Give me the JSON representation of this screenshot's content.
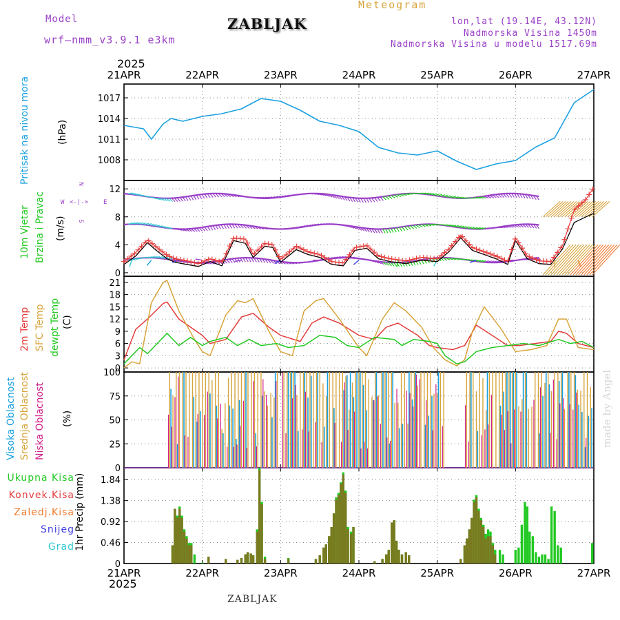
{
  "header": {
    "model_label": "Model",
    "model_name": "wrf–nmm_v3.9.1  e3km",
    "station": "ZABLJAK",
    "title": "Meteogram",
    "coords": "lon,lat (19.14E, 43.12N)",
    "elevation": "Nadmorska Visina 1450m",
    "model_elevation": "Nadmorska Visina u modelu 1517.69m",
    "year_top": "2025",
    "year_bottom": "2025"
  },
  "footer_station": "ZABLJAK",
  "watermark": "made by Angel",
  "colors": {
    "pressure": "#1aa0e0",
    "wind_green": "#22c922",
    "temp2m": "#e43b3b",
    "sfc_temp": "#d8a43a",
    "dewpoint": "#22c922",
    "high_cloud": "#1aa0e0",
    "mid_cloud": "#d8a43a",
    "low_cloud": "#d0208a",
    "purple": "#9a40c8",
    "total_precip": "#22c922",
    "conv_precip": "#e43b3b",
    "frozen_precip": "#f07b30",
    "snow": "#4040e0",
    "hail": "#30c8d0",
    "olive": "#7a7a20"
  },
  "panel_labels": {
    "pressure": "Pritisak na nivou mora",
    "pressure_unit": "(hPa)",
    "wind_a": "10m Vjetar",
    "wind_b": "Brzina i Pravac",
    "wind_unit": "(m/s)",
    "wind_dir_n": "N",
    "wind_dir_e": "E",
    "wind_dir_w": "W",
    "wind_dir_s": "S",
    "temp_a": "2m Temp",
    "temp_b": "SFC Temp",
    "temp_c": "dewpt Temp",
    "temp_unit": "(C)",
    "cloud_high": "Visoka Oblacnost",
    "cloud_mid": "Srednja Oblacnost",
    "cloud_low": "Niska Oblacnost",
    "cloud_unit": "(%)",
    "precip_unit": "1hr Precip (mm)",
    "precip_total": "Ukupna Kisa",
    "precip_conv": "Konvek.Kisa",
    "precip_frozen": "Zaledj.Kisa",
    "precip_snow": "Snijeg",
    "precip_hail": "Grad"
  },
  "chart_data": [
    {
      "id": "pressure",
      "type": "line",
      "x_ticks": [
        "21APR",
        "22APR",
        "23APR",
        "24APR",
        "25APR",
        "26APR",
        "27APR"
      ],
      "ylabel": "Pritisak na nivou mora (hPa)",
      "ylim": [
        1005,
        1019
      ],
      "yticks": [
        "1008",
        "1011",
        "1014",
        "1017"
      ],
      "grid": true,
      "days": [
        0,
        0.25,
        0.35,
        0.5,
        0.6,
        0.75,
        1.0,
        1.25,
        1.5,
        1.75,
        2.0,
        2.25,
        2.5,
        2.75,
        3.0,
        3.25,
        3.5,
        3.75,
        4.0,
        4.25,
        4.5,
        4.75,
        5.0,
        5.25,
        5.5,
        5.75,
        6.0
      ],
      "values": [
        1013,
        1012.5,
        1011,
        1013.2,
        1014,
        1013.6,
        1014.3,
        1014.7,
        1015.4,
        1016.9,
        1016.5,
        1015.2,
        1013.6,
        1013.0,
        1012.1,
        1009.8,
        1009.0,
        1008.7,
        1009.3,
        1007.8,
        1006.6,
        1007.4,
        1007.9,
        1009.8,
        1011.2,
        1016.3,
        1018.2
      ]
    },
    {
      "id": "wind",
      "type": "line",
      "x_ticks": [
        "21APR",
        "22APR",
        "23APR",
        "24APR",
        "25APR",
        "26APR",
        "27APR"
      ],
      "ylabel": "10m Vjetar Brzina i Pravac (m/s)",
      "ylim": [
        -0.5,
        13.2
      ],
      "yticks": [
        "0",
        "4",
        "8",
        "12"
      ],
      "grid": true,
      "days": [
        0,
        0.15,
        0.3,
        0.4,
        0.55,
        0.65,
        0.8,
        0.95,
        1.1,
        1.25,
        1.4,
        1.55,
        1.65,
        1.8,
        1.9,
        2.0,
        2.2,
        2.35,
        2.5,
        2.65,
        2.8,
        2.95,
        3.1,
        3.25,
        3.4,
        3.6,
        3.8,
        4.0,
        4.15,
        4.3,
        4.45,
        4.6,
        4.75,
        4.9,
        5.0,
        5.15,
        5.3,
        5.45,
        5.6,
        5.75,
        5.9,
        6.0
      ],
      "speed": [
        1.2,
        2.4,
        4.3,
        3.3,
        2.0,
        1.5,
        1.2,
        0.9,
        1.6,
        1.0,
        4.6,
        4.2,
        2.2,
        3.8,
        3.6,
        1.5,
        3.3,
        2.6,
        2.2,
        1.2,
        1.0,
        3.2,
        3.5,
        2.0,
        1.6,
        1.3,
        1.8,
        1.6,
        3.0,
        5.0,
        3.2,
        2.6,
        2.0,
        1.2,
        4.6,
        2.0,
        1.3,
        1.2,
        3.4,
        7.2,
        8.0,
        8.5
      ],
      "gust": [
        1.6,
        2.9,
        4.7,
        3.8,
        2.5,
        2.0,
        1.7,
        1.3,
        2.0,
        1.5,
        5.0,
        4.8,
        2.6,
        4.2,
        4.0,
        1.9,
        3.8,
        3.0,
        2.6,
        1.6,
        1.4,
        3.6,
        3.9,
        2.4,
        2.0,
        1.7,
        2.2,
        2.0,
        3.4,
        5.4,
        3.6,
        3.0,
        2.4,
        1.6,
        5.0,
        2.4,
        1.7,
        1.6,
        3.9,
        9.0,
        10.5,
        12.2
      ],
      "direction_lanes": [
        1.8,
        6.6,
        11.0
      ],
      "barbs": [
        {
          "day": 0.1,
          "lane": 1.8,
          "angle": 200,
          "c": "#30c8d0"
        },
        {
          "day": 0.35,
          "lane": 1.8,
          "angle": 220,
          "c": "#1aa0e0"
        },
        {
          "day": 0.7,
          "lane": 1.8,
          "angle": 250,
          "c": "#4040e0"
        },
        {
          "day": 1.0,
          "lane": 1.8,
          "angle": 280,
          "c": "#9a40c8"
        },
        {
          "day": 1.5,
          "lane": 1.8,
          "angle": 260,
          "c": "#9a40c8"
        },
        {
          "day": 2.0,
          "lane": 1.8,
          "angle": 240,
          "c": "#4040e0"
        },
        {
          "day": 2.5,
          "lane": 1.8,
          "angle": 270,
          "c": "#9a40c8"
        },
        {
          "day": 3.0,
          "lane": 1.8,
          "angle": 230,
          "c": "#4040e0"
        },
        {
          "day": 3.5,
          "lane": 1.8,
          "angle": 190,
          "c": "#22c922"
        },
        {
          "day": 4.0,
          "lane": 1.8,
          "angle": 210,
          "c": "#30c8d0"
        },
        {
          "day": 4.5,
          "lane": 1.8,
          "angle": 250,
          "c": "#4040e0"
        },
        {
          "day": 5.0,
          "lane": 1.8,
          "angle": 270,
          "c": "#9a40c8"
        },
        {
          "day": 5.5,
          "lane": 1.8,
          "angle": 180,
          "c": "#d8a43a"
        },
        {
          "day": 5.8,
          "lane": 1.8,
          "angle": 160,
          "c": "#f07b30"
        }
      ]
    },
    {
      "id": "temperature",
      "type": "line",
      "x_ticks": [
        "21APR",
        "22APR",
        "23APR",
        "24APR",
        "25APR",
        "26APR",
        "27APR"
      ],
      "ylabel": "Temp (C)",
      "ylim": [
        -1,
        22.5
      ],
      "yticks": [
        "0",
        "3",
        "6",
        "9",
        "12",
        "15",
        "18",
        "21"
      ],
      "grid": true,
      "series": [
        {
          "name": "2m Temp",
          "days": [
            0,
            0.15,
            0.3,
            0.5,
            0.55,
            0.7,
            1.0,
            1.1,
            1.3,
            1.5,
            1.65,
            1.85,
            2.0,
            2.25,
            2.4,
            2.55,
            2.75,
            3.0,
            3.2,
            3.35,
            3.5,
            3.75,
            3.9,
            4.0,
            4.2,
            4.35,
            4.5,
            4.7,
            4.9,
            5.05,
            5.25,
            5.45,
            5.55,
            5.65,
            5.8,
            6.0
          ],
          "values": [
            2,
            9.5,
            12,
            15.8,
            16.2,
            12,
            8,
            6,
            7,
            12.5,
            13.4,
            10,
            8,
            6.5,
            11,
            12.5,
            11,
            8,
            7,
            10,
            11,
            8,
            5.5,
            5,
            4.5,
            5.5,
            10.5,
            8,
            5.5,
            5.5,
            6,
            6.5,
            9,
            8.5,
            6,
            5
          ]
        },
        {
          "name": "SFC Temp",
          "days": [
            0,
            0.1,
            0.2,
            0.35,
            0.5,
            0.55,
            0.7,
            0.9,
            1.0,
            1.1,
            1.3,
            1.45,
            1.55,
            1.65,
            1.85,
            2.0,
            2.15,
            2.3,
            2.45,
            2.55,
            2.75,
            3.0,
            3.1,
            3.3,
            3.45,
            3.6,
            3.8,
            3.95,
            4.1,
            4.25,
            4.35,
            4.45,
            4.6,
            4.8,
            5.0,
            5.2,
            5.4,
            5.55,
            5.65,
            5.8,
            6.0
          ],
          "values": [
            0,
            1.5,
            1,
            16,
            21,
            21.5,
            14,
            7,
            4,
            3,
            13,
            16.5,
            16,
            17,
            9,
            4,
            3,
            14,
            16.5,
            17,
            12,
            5,
            3,
            12,
            16,
            14,
            10,
            5,
            2,
            0.5,
            2,
            9,
            15,
            10,
            4,
            4.5,
            5.5,
            12,
            12,
            5,
            4.5
          ]
        },
        {
          "name": "dewpt Temp",
          "days": [
            0,
            0.2,
            0.3,
            0.45,
            0.55,
            0.7,
            0.85,
            1.0,
            1.1,
            1.3,
            1.45,
            1.6,
            1.75,
            1.95,
            2.1,
            2.3,
            2.5,
            2.7,
            2.85,
            3.0,
            3.2,
            3.45,
            3.55,
            3.7,
            3.9,
            4.0,
            4.1,
            4.25,
            4.35,
            4.5,
            4.7,
            4.9,
            5.1,
            5.3,
            5.55,
            5.7,
            5.85,
            6.0
          ],
          "values": [
            1,
            5,
            3.5,
            6.5,
            8.5,
            5.5,
            7.5,
            5.5,
            6.5,
            7.5,
            5.5,
            7,
            5.5,
            6,
            5,
            5.5,
            8,
            7.5,
            5.5,
            5,
            7.5,
            7,
            5.5,
            7,
            6.5,
            6,
            3,
            1,
            1.5,
            4,
            5,
            5.5,
            6,
            5.5,
            7,
            6,
            6.5,
            5
          ]
        }
      ]
    },
    {
      "id": "clouds",
      "type": "bar",
      "x_ticks": [
        "21APR",
        "22APR",
        "23APR",
        "24APR",
        "25APR",
        "26APR",
        "27APR"
      ],
      "ylabel": "Oblacnost (%)",
      "ylim": [
        0,
        100
      ],
      "yticks": [
        "0",
        "25",
        "50",
        "75",
        "100"
      ],
      "grid": true,
      "note": "hourly high/mid/low cloud fraction, approximated"
    },
    {
      "id": "precip",
      "type": "bar",
      "x_ticks": [
        "21APR",
        "22APR",
        "23APR",
        "24APR",
        "25APR",
        "26APR",
        "27APR"
      ],
      "ylabel": "1hr Precip (mm)",
      "ylim": [
        0,
        2.1
      ],
      "yticks": [
        "0",
        "0.46",
        "0.92",
        "1.38",
        "1.84"
      ],
      "grid": true,
      "bars": [
        {
          "d": 0.62,
          "t": 0.4,
          "c": 0.4
        },
        {
          "d": 0.65,
          "t": 1.2,
          "c": 1.2
        },
        {
          "d": 0.68,
          "t": 1.05,
          "c": 1.0
        },
        {
          "d": 0.71,
          "t": 1.25,
          "c": 1.2
        },
        {
          "d": 0.74,
          "t": 1.05,
          "c": 1.0
        },
        {
          "d": 0.77,
          "t": 0.75,
          "c": 0.7
        },
        {
          "d": 0.8,
          "t": 0.6,
          "c": 0.55
        },
        {
          "d": 0.83,
          "t": 0.45,
          "c": 0.4
        },
        {
          "d": 0.86,
          "t": 0.45,
          "c": 0.4
        },
        {
          "d": 0.9,
          "t": 0.2,
          "c": 0.0
        },
        {
          "d": 1.0,
          "t": 0.02,
          "c": 0.0
        },
        {
          "d": 1.08,
          "t": 0.15,
          "c": 0.15
        },
        {
          "d": 1.3,
          "t": 0.1,
          "c": 0.1
        },
        {
          "d": 1.45,
          "t": 0.08,
          "c": 0.08
        },
        {
          "d": 1.5,
          "t": 0.12,
          "c": 0.12
        },
        {
          "d": 1.55,
          "t": 0.2,
          "c": 0.2
        },
        {
          "d": 1.58,
          "t": 0.25,
          "c": 0.25
        },
        {
          "d": 1.62,
          "t": 0.22,
          "c": 0.22
        },
        {
          "d": 1.65,
          "t": 0.18,
          "c": 0.18
        },
        {
          "d": 1.7,
          "t": 0.75,
          "c": 0.7
        },
        {
          "d": 1.73,
          "t": 2.1,
          "c": 2.05
        },
        {
          "d": 1.76,
          "t": 1.35,
          "c": 1.3
        },
        {
          "d": 1.8,
          "t": 0.15,
          "c": 0.1
        },
        {
          "d": 2.1,
          "t": 0.12,
          "c": 0.1
        },
        {
          "d": 2.45,
          "t": 0.1,
          "c": 0.1
        },
        {
          "d": 2.5,
          "t": 0.18,
          "c": 0.18
        },
        {
          "d": 2.55,
          "t": 0.35,
          "c": 0.35
        },
        {
          "d": 2.58,
          "t": 0.42,
          "c": 0.42
        },
        {
          "d": 2.62,
          "t": 0.6,
          "c": 0.6
        },
        {
          "d": 2.65,
          "t": 0.8,
          "c": 0.8
        },
        {
          "d": 2.68,
          "t": 1.1,
          "c": 1.1
        },
        {
          "d": 2.71,
          "t": 1.45,
          "c": 1.4
        },
        {
          "d": 2.74,
          "t": 1.55,
          "c": 1.5
        },
        {
          "d": 2.77,
          "t": 1.78,
          "c": 1.75
        },
        {
          "d": 2.8,
          "t": 2.0,
          "c": 1.95
        },
        {
          "d": 2.83,
          "t": 1.6,
          "c": 1.55
        },
        {
          "d": 2.86,
          "t": 0.8,
          "c": 0.75
        },
        {
          "d": 2.9,
          "t": 0.7,
          "c": 0.65
        },
        {
          "d": 2.93,
          "t": 0.8,
          "c": 0.8
        },
        {
          "d": 3.2,
          "t": 0.05,
          "c": 0.05
        },
        {
          "d": 3.3,
          "t": 0.1,
          "c": 0.1
        },
        {
          "d": 3.35,
          "t": 0.2,
          "c": 0.2
        },
        {
          "d": 3.38,
          "t": 0.3,
          "c": 0.3
        },
        {
          "d": 3.42,
          "t": 0.9,
          "c": 0.9
        },
        {
          "d": 3.45,
          "t": 0.95,
          "c": 0.95
        },
        {
          "d": 3.48,
          "t": 0.5,
          "c": 0.5
        },
        {
          "d": 3.51,
          "t": 0.3,
          "c": 0.3
        },
        {
          "d": 3.55,
          "t": 0.2,
          "c": 0.2
        },
        {
          "d": 3.6,
          "t": 0.25,
          "c": 0.25
        },
        {
          "d": 3.64,
          "t": 0.18,
          "c": 0.18
        },
        {
          "d": 4.3,
          "t": 0.1,
          "c": 0.1
        },
        {
          "d": 4.35,
          "t": 0.4,
          "c": 0.4
        },
        {
          "d": 4.38,
          "t": 0.55,
          "c": 0.55
        },
        {
          "d": 4.41,
          "t": 0.75,
          "c": 0.75
        },
        {
          "d": 4.44,
          "t": 1.0,
          "c": 1.0
        },
        {
          "d": 4.47,
          "t": 1.4,
          "c": 1.35
        },
        {
          "d": 4.5,
          "t": 1.5,
          "c": 1.45
        },
        {
          "d": 4.53,
          "t": 1.2,
          "c": 1.15
        },
        {
          "d": 4.56,
          "t": 1.0,
          "c": 0.95
        },
        {
          "d": 4.59,
          "t": 0.85,
          "c": 0.8
        },
        {
          "d": 4.62,
          "t": 0.65,
          "c": 0.55
        },
        {
          "d": 4.65,
          "t": 0.75,
          "c": 0.6
        },
        {
          "d": 4.68,
          "t": 0.7,
          "c": 0.6
        },
        {
          "d": 4.71,
          "t": 0.45,
          "c": 0.4
        },
        {
          "d": 4.74,
          "t": 0.3,
          "c": 0.2
        },
        {
          "d": 4.8,
          "t": 0.3,
          "c": 0.0
        },
        {
          "d": 4.84,
          "t": 0.2,
          "c": 0.0
        },
        {
          "d": 5.0,
          "t": 0.3,
          "c": 0.0
        },
        {
          "d": 5.04,
          "t": 0.35,
          "c": 0.0
        },
        {
          "d": 5.08,
          "t": 0.85,
          "c": 0.0
        },
        {
          "d": 5.12,
          "t": 1.35,
          "c": 0.0
        },
        {
          "d": 5.15,
          "t": 1.25,
          "c": 0.0
        },
        {
          "d": 5.18,
          "t": 0.7,
          "c": 0.0
        },
        {
          "d": 5.22,
          "t": 0.6,
          "c": 0.0
        },
        {
          "d": 5.26,
          "t": 0.25,
          "c": 0.0
        },
        {
          "d": 5.3,
          "t": 0.15,
          "c": 0.0
        },
        {
          "d": 5.34,
          "t": 0.2,
          "c": 0.0
        },
        {
          "d": 5.38,
          "t": 0.2,
          "c": 0.0
        },
        {
          "d": 5.42,
          "t": 0.1,
          "c": 0.0
        },
        {
          "d": 5.46,
          "t": 1.25,
          "c": 0.0
        },
        {
          "d": 5.5,
          "t": 1.15,
          "c": 0.0
        },
        {
          "d": 5.54,
          "t": 0.4,
          "c": 0.0
        },
        {
          "d": 5.58,
          "t": 0.35,
          "c": 0.0
        },
        {
          "d": 5.98,
          "t": 0.45,
          "c": 0.0
        }
      ]
    }
  ]
}
